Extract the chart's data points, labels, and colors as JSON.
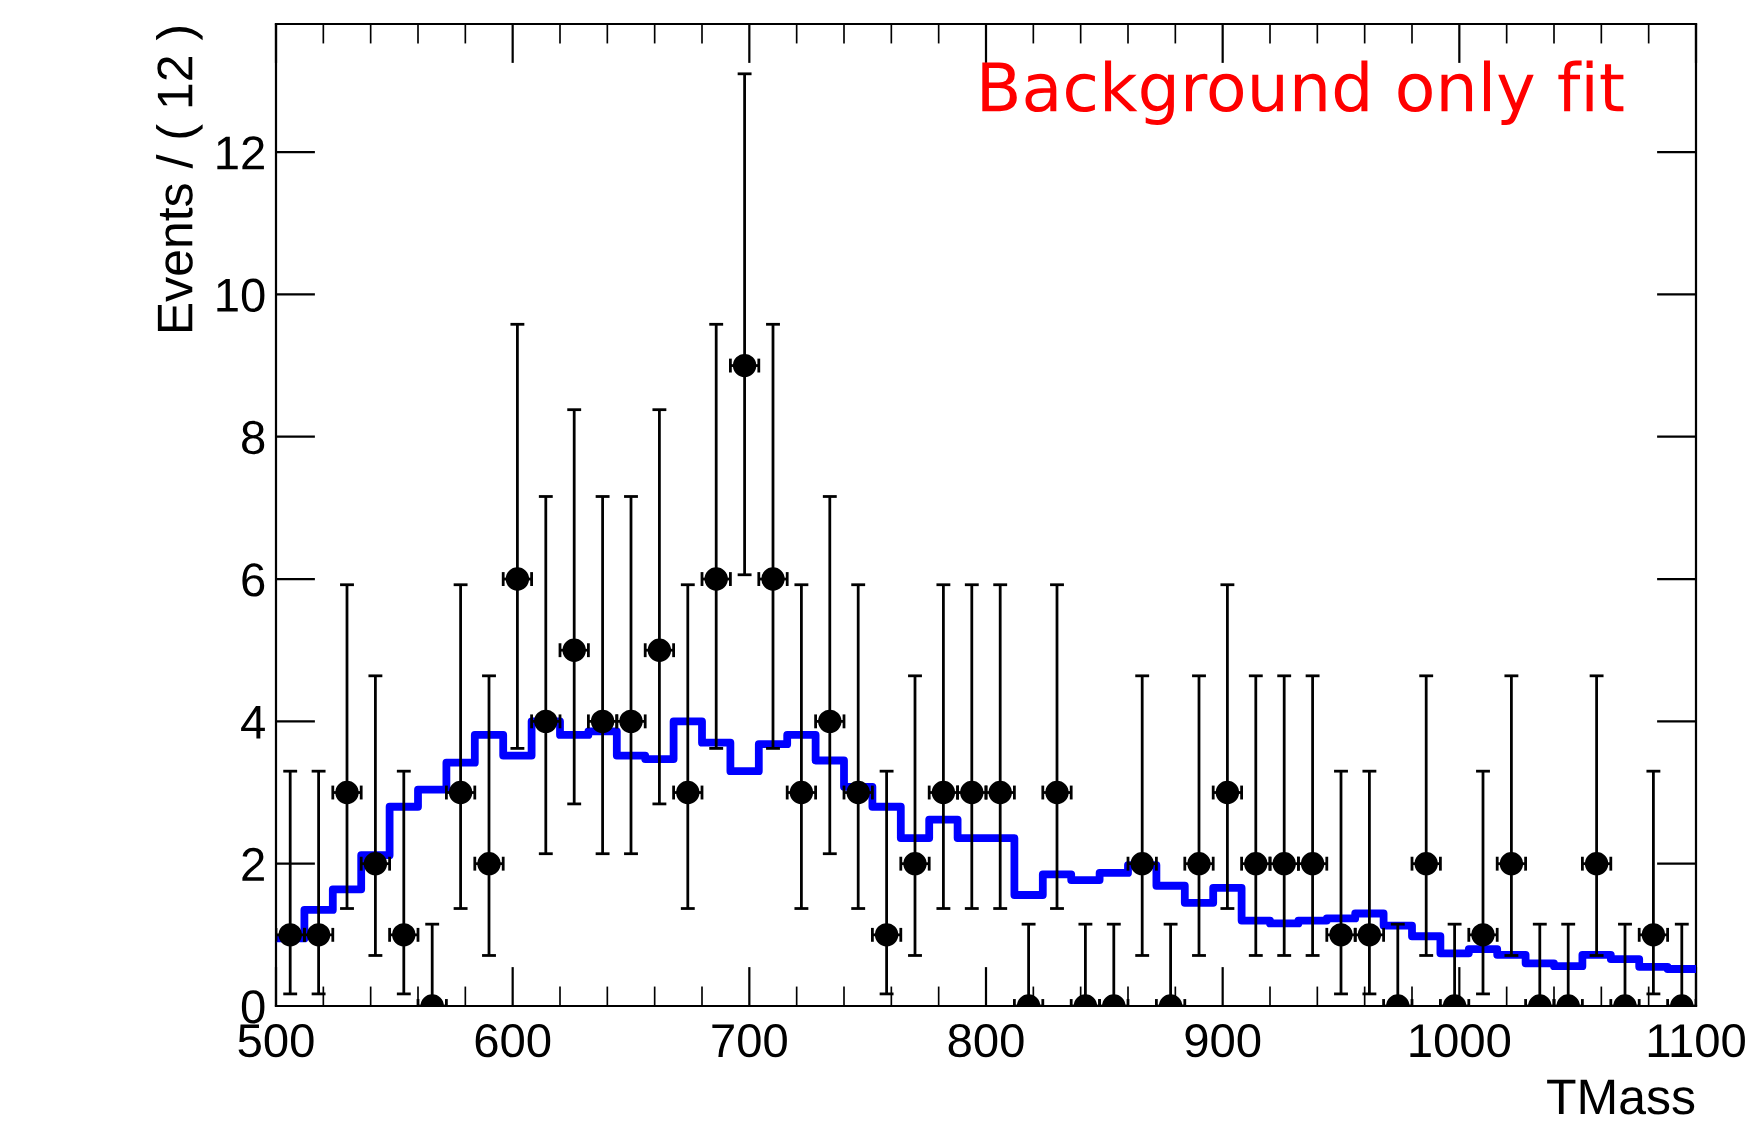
{
  "chart_data": {
    "type": "scatter",
    "xlabel": "TMass",
    "ylabel": "Events / ( 12 )",
    "annotations": [
      "Background only fit"
    ],
    "xlim": [
      500,
      1100
    ],
    "ylim": [
      0,
      13.8
    ],
    "xticks": [
      500,
      600,
      700,
      800,
      900,
      1000,
      1100
    ],
    "yticks": [
      0,
      2,
      4,
      6,
      8,
      10,
      12
    ],
    "grid": false,
    "legend": false,
    "marker": "circle",
    "series": [
      {
        "type": "scatter",
        "color": "#000000",
        "x": [
          506,
          518,
          530,
          542,
          554,
          566,
          578,
          590,
          602,
          614,
          626,
          638,
          650,
          662,
          674,
          686,
          698,
          710,
          722,
          734,
          746,
          758,
          770,
          782,
          794,
          806,
          818,
          830,
          842,
          854,
          866,
          878,
          890,
          902,
          914,
          926,
          938,
          950,
          962,
          974,
          986,
          998,
          1010,
          1022,
          1034,
          1046,
          1058,
          1070,
          1082,
          1094
        ],
        "values": [
          1,
          1,
          3,
          2,
          1,
          0,
          3,
          2,
          6,
          4,
          5,
          4,
          4,
          5,
          3,
          6,
          9,
          6,
          3,
          4,
          3,
          1,
          2,
          3,
          3,
          3,
          0,
          3,
          0,
          0,
          2,
          0,
          2,
          3,
          2,
          2,
          2,
          1,
          1,
          0,
          2,
          0,
          1,
          2,
          0,
          0,
          2,
          0,
          1,
          0
        ],
        "errors": [
          [
            0.17,
            3.3
          ],
          [
            0.17,
            3.3
          ],
          [
            1.37,
            5.92
          ],
          [
            0.71,
            4.64
          ],
          [
            0.17,
            3.3
          ],
          [
            0,
            1.15
          ],
          [
            1.37,
            5.92
          ],
          [
            0.71,
            4.64
          ],
          [
            3.62,
            9.58
          ],
          [
            2.14,
            7.16
          ],
          [
            2.84,
            8.38
          ],
          [
            2.14,
            7.16
          ],
          [
            2.14,
            7.16
          ],
          [
            2.84,
            8.38
          ],
          [
            1.37,
            5.92
          ],
          [
            3.62,
            9.58
          ],
          [
            6.06,
            13.1
          ],
          [
            3.62,
            9.58
          ],
          [
            1.37,
            5.92
          ],
          [
            2.14,
            7.16
          ],
          [
            1.37,
            5.92
          ],
          [
            0.17,
            3.3
          ],
          [
            0.71,
            4.64
          ],
          [
            1.37,
            5.92
          ],
          [
            1.37,
            5.92
          ],
          [
            1.37,
            5.92
          ],
          [
            0,
            1.15
          ],
          [
            1.37,
            5.92
          ],
          [
            0,
            1.15
          ],
          [
            0,
            1.15
          ],
          [
            0.71,
            4.64
          ],
          [
            0,
            1.15
          ],
          [
            0.71,
            4.64
          ],
          [
            1.37,
            5.92
          ],
          [
            0.71,
            4.64
          ],
          [
            0.71,
            4.64
          ],
          [
            0.71,
            4.64
          ],
          [
            0.17,
            3.3
          ],
          [
            0.17,
            3.3
          ],
          [
            0,
            1.15
          ],
          [
            0.71,
            4.64
          ],
          [
            0,
            1.15
          ],
          [
            0.17,
            3.3
          ],
          [
            0.71,
            4.64
          ],
          [
            0,
            1.15
          ],
          [
            0,
            1.15
          ],
          [
            0.71,
            4.64
          ],
          [
            0,
            1.15
          ],
          [
            0.17,
            3.3
          ],
          [
            0,
            1.15
          ]
        ],
        "xerrors": [
          6,
          6,
          6,
          6,
          6,
          6,
          6,
          6,
          6,
          6,
          6,
          6,
          6,
          6,
          6,
          6,
          6,
          6,
          6,
          6,
          6,
          6,
          6,
          6,
          6,
          6,
          6,
          6,
          6,
          6,
          6,
          6,
          6,
          6,
          6,
          6,
          6,
          6,
          6,
          6,
          6,
          6,
          6,
          6,
          6,
          6,
          6,
          6,
          6,
          6
        ]
      },
      {
        "type": "step",
        "color": "#0000ff",
        "line_style": "solid",
        "marker": "none",
        "x": [
          500,
          512,
          524,
          536,
          548,
          560,
          572,
          584,
          596,
          608,
          620,
          632,
          644,
          656,
          668,
          680,
          692,
          704,
          716,
          728,
          740,
          752,
          764,
          776,
          788,
          800,
          812,
          824,
          836,
          848,
          860,
          872,
          884,
          896,
          908,
          920,
          932,
          944,
          956,
          968,
          980,
          992,
          1004,
          1016,
          1028,
          1040,
          1052,
          1064,
          1076,
          1088,
          1100
        ],
        "values": [
          0.95,
          1.35,
          1.64,
          2.12,
          2.8,
          3.04,
          3.42,
          3.81,
          3.52,
          4.0,
          3.81,
          3.86,
          3.52,
          3.47,
          4.0,
          3.7,
          3.3,
          3.68,
          3.81,
          3.45,
          3.08,
          2.8,
          2.36,
          2.62,
          2.36,
          2.36,
          1.56,
          1.85,
          1.77,
          1.87,
          1.98,
          1.69,
          1.45,
          1.66,
          1.2,
          1.16,
          1.2,
          1.23,
          1.3,
          1.13,
          0.98,
          0.74,
          0.8,
          0.72,
          0.6,
          0.56,
          0.72,
          0.66,
          0.55,
          0.52,
          0.52
        ]
      }
    ]
  }
}
